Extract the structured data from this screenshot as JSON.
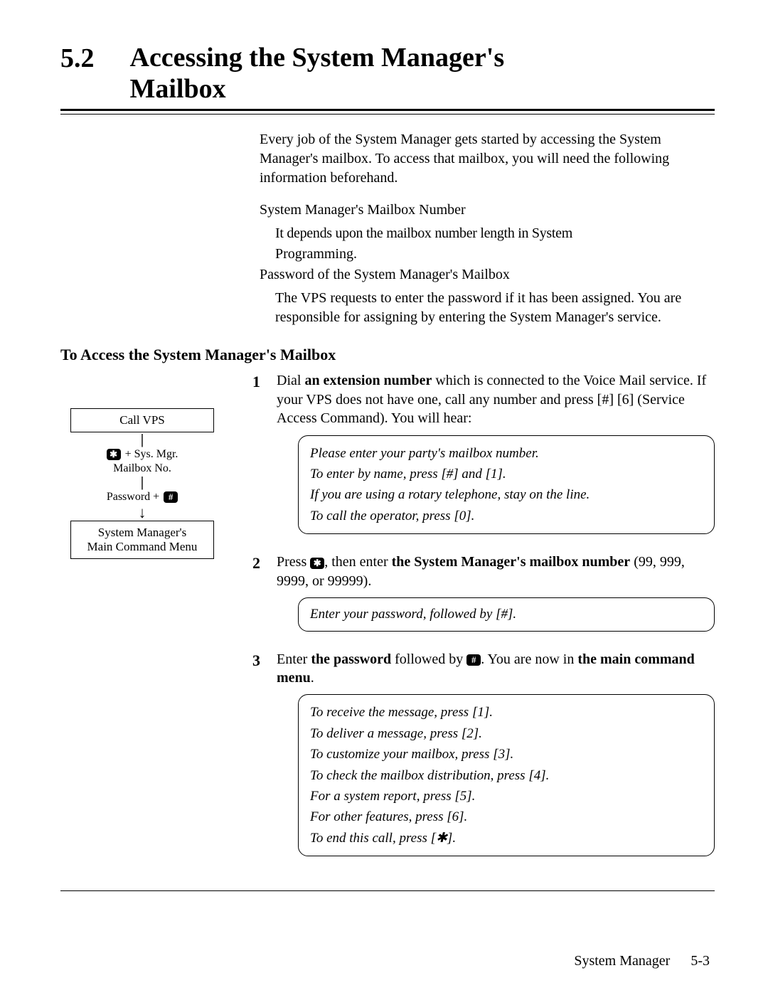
{
  "section_number": "5.2",
  "section_title_line1": "Accessing the System Manager's",
  "section_title_line2": "Mailbox",
  "intro_para": "Every job of the System Manager gets started by accessing the System Manager's mailbox.  To access that mailbox, you will need the following information beforehand.",
  "intro_sub1": "System Manager's Mailbox Number",
  "intro_garbled": "It depends upon the mailbox number length in System",
  "intro_programming": "Programming.",
  "intro_sub2": "Password of the System Manager's Mailbox",
  "intro_pw_detail": "The VPS requests to enter the password if it has been assigned.  You are responsible for assigning by entering the System Manager's service.",
  "subheading": "To Access the System Manager's Mailbox",
  "flow": {
    "box1": "Call VPS",
    "star_label": "+ Sys. Mgr.",
    "star_label2": "Mailbox No.",
    "pw_label": "Password +",
    "box2_line1": "System Manager's",
    "box2_line2": "Main Command Menu"
  },
  "steps": {
    "s1_a": "Dial ",
    "s1_b": "an extension number",
    "s1_c": " which is connected to the Voice Mail service.  If your VPS does not have one, call any number and press [#] [6] (Service Access Command). You will hear:",
    "s2_a": "Press ",
    "s2_b": ", then enter ",
    "s2_c": "the System Manager's mailbox number",
    "s2_d": " (99, 999, 9999, or 99999).",
    "s3_a": "Enter ",
    "s3_b": "the password",
    "s3_c": " followed by ",
    "s3_d": ".  You are now in ",
    "s3_e": "the main command menu",
    "s3_f": "."
  },
  "voice1": {
    "l1": "Please enter your party's mailbox number.",
    "l2": "To enter by name, press [#] and [1].",
    "l3": "If you are using a rotary telephone, stay on the line.",
    "l4": "To call the operator, press [0]."
  },
  "voice2": "Enter your password, followed by [#].",
  "voice3": {
    "l1": "To receive the message, press [1].",
    "l2": "To deliver a message, press [2].",
    "l3": "To customize your mailbox, press [3].",
    "l4": "To check the mailbox distribution, press [4].",
    "l5": "For a system report, press [5].",
    "l6": "For other features, press [6].",
    "l7": "To end this call, press [✱]."
  },
  "footer_label": "System Manager",
  "footer_page": "5-3",
  "icons": {
    "star": "✱",
    "hash": "#"
  }
}
